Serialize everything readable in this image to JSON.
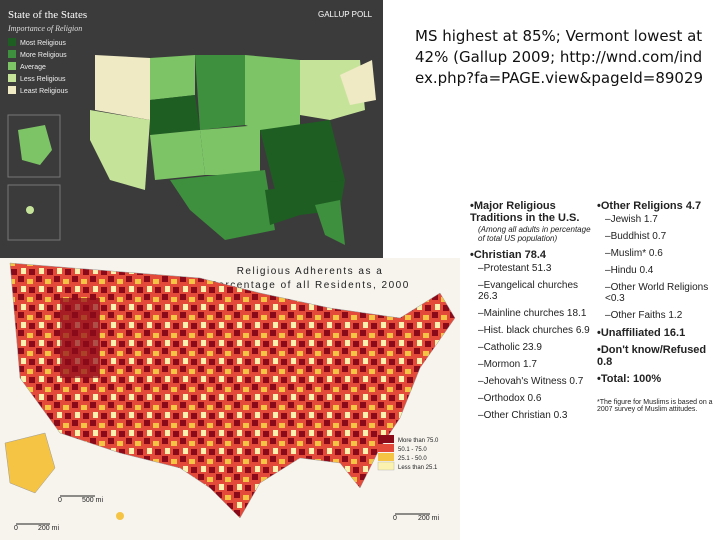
{
  "caption": "MS highest at 85%; Vermont lowest at 42% (Gallup 2009; http://wnd.com/index.php?fa=PAGE.view&pageId=89029",
  "gallup_map": {
    "title": "State of the States",
    "subtitle": "Importance of Religion",
    "brand": "GALLUP POLL",
    "legend": [
      "Most Religious",
      "More Religious",
      "Average",
      "Less Religious",
      "Least Religious"
    ]
  },
  "adherents_map": {
    "title": [
      "Religious Adherents as a",
      "Percentage of all Residents, 2000"
    ],
    "legend": [
      "More than 75.0",
      "50.1 - 75.0",
      "25.1 - 50.0",
      "Less than 25.1"
    ],
    "scale": [
      "0",
      "500 mi",
      "0",
      "200 mi",
      "0",
      "200 mi"
    ]
  },
  "traditions": {
    "heading": "Major Religious Traditions in the U.S.",
    "note": "(Among all adults in percentage of total US population)",
    "christian": {
      "label": "Christian 78.4",
      "items": [
        "Protestant 51.3",
        "Evangelical churches 26.3",
        "Mainline churches 18.1",
        "Hist. black churches 6.9",
        "Catholic 23.9",
        "Mormon 1.7",
        "Jehovah's Witness 0.7",
        "Orthodox 0.6",
        "Other Christian 0.3"
      ]
    },
    "other": {
      "label": "Other Religions 4.7",
      "items": [
        "Jewish 1.7",
        "Buddhist 0.7",
        "Muslim* 0.6",
        "Hindu 0.4",
        "Other World Religions <0.3",
        "Other Faiths 1.2"
      ]
    },
    "totals": [
      "Unaffiliated 16.1",
      "Don't know/Refused 0.8",
      "Total: 100%"
    ],
    "footnote": "*The figure for Muslims is based on a 2007 survey of Muslim attitudes."
  }
}
